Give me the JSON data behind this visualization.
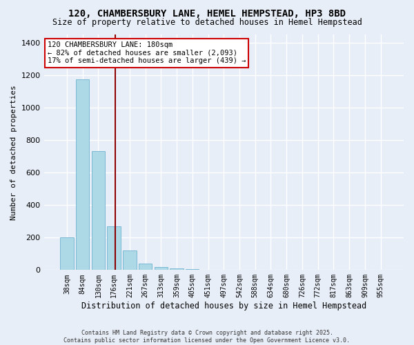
{
  "title": "120, CHAMBERSBURY LANE, HEMEL HEMPSTEAD, HP3 8BD",
  "subtitle": "Size of property relative to detached houses in Hemel Hempstead",
  "xlabel": "Distribution of detached houses by size in Hemel Hempstead",
  "ylabel": "Number of detached properties",
  "footer_line1": "Contains HM Land Registry data © Crown copyright and database right 2025.",
  "footer_line2": "Contains public sector information licensed under the Open Government Licence v3.0.",
  "bin_labels": [
    "38sqm",
    "84sqm",
    "130sqm",
    "176sqm",
    "221sqm",
    "267sqm",
    "313sqm",
    "359sqm",
    "405sqm",
    "451sqm",
    "497sqm",
    "542sqm",
    "588sqm",
    "634sqm",
    "680sqm",
    "726sqm",
    "772sqm",
    "817sqm",
    "863sqm",
    "909sqm",
    "955sqm"
  ],
  "bar_values": [
    200,
    1175,
    730,
    270,
    120,
    40,
    18,
    8,
    5,
    3,
    2,
    1,
    1,
    1,
    0,
    0,
    0,
    0,
    0,
    0,
    0
  ],
  "bar_color": "#add8e6",
  "bar_edge_color": "#7ab8d4",
  "annotation_title": "120 CHAMBERSBURY LANE: 180sqm",
  "annotation_line1": "← 82% of detached houses are smaller (2,093)",
  "annotation_line2": "17% of semi-detached houses are larger (439) →",
  "property_line_color": "#8B0000",
  "annotation_box_color": "#cc0000",
  "ylim": [
    0,
    1450
  ],
  "background_color": "#e8eef8",
  "grid_color": "#ffffff"
}
